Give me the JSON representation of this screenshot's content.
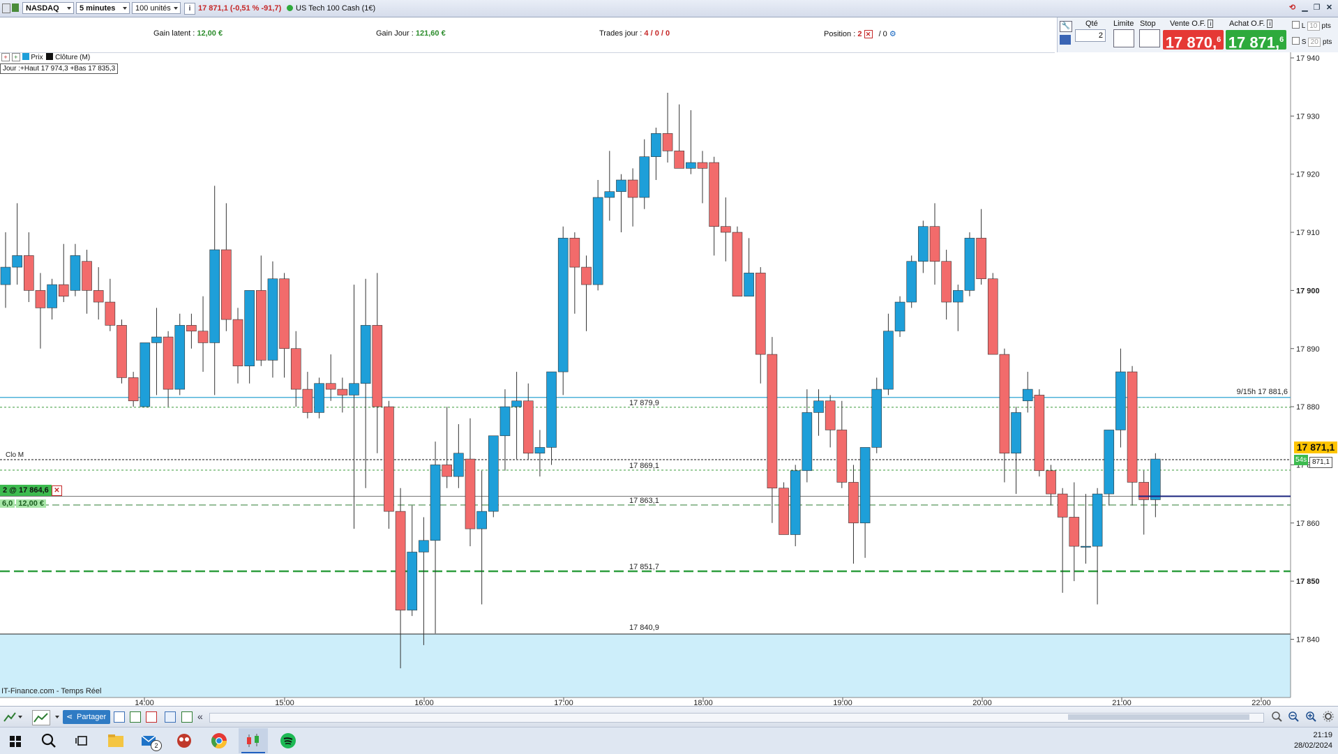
{
  "topbar": {
    "market": "NASDAQ",
    "interval": "5 minutes",
    "units": "100 unités",
    "info_icon": "i",
    "price": "17 871,1",
    "change": "(-0,51 % -91,7)",
    "instrument": "US Tech 100 Cash (1€)"
  },
  "stats": {
    "gain_latent_label": "Gain latent :",
    "gain_latent_value": "12,00 €",
    "gain_jour_label": "Gain Jour :",
    "gain_jour_value": "121,60 €",
    "trades_label": "Trades jour :",
    "trades_value": "4 / 0 / 0",
    "position_label": "Position :",
    "position_value": "2",
    "position_sep": "/ 0"
  },
  "order_panel": {
    "qty_label": "Qté",
    "qty_value": "2",
    "limit_label": "Limite",
    "stop_label": "Stop",
    "sell_label": "Vente O.F.",
    "sell_price": "17 870,",
    "sell_decimal": "6",
    "buy_label": "Achat O.F.",
    "buy_price": "17 871,",
    "buy_decimal": "6",
    "l_label": "L",
    "l_value": "10",
    "s_label": "S",
    "s_value": "20",
    "pts_label": "pts"
  },
  "chart_toolbar": {
    "price_label": "Prix",
    "close_label": "Clôture (M)",
    "day_range": "Jour :+Haut 17 974,3 +Bas 17 835,3"
  },
  "chart_labels": {
    "level_1": "17 879,9",
    "level_2": "17 869,1",
    "level_3": "17 863,1",
    "level_4": "17 851,7",
    "level_5": "17 840,9",
    "close_m": "Clo M",
    "prev_close": "9/15h 17 881,6",
    "position_tag": "2 @ 17 864,6",
    "pnl_qty": "6,0",
    "pnl_value": "12,00 €",
    "current_price": "17 871,1",
    "countdown": "54s",
    "mid_price": "871,1",
    "source": "IT-Finance.com - Temps Réel"
  },
  "chart_data": {
    "type": "candlestick",
    "x_ticks": [
      "14:00",
      "15:00",
      "16:00",
      "17:00",
      "18:00",
      "19:00",
      "20:00",
      "21:00",
      "22:00"
    ],
    "y_ticks": [
      17840,
      17850,
      17860,
      17870,
      17880,
      17890,
      17900,
      17910,
      17920,
      17930,
      17940
    ],
    "y_tick_labels": [
      "17 840",
      "17 850",
      "17 860",
      "17 870",
      "17 880",
      "17 890",
      "17 900",
      "17 910",
      "17 920",
      "17 930",
      "17 940"
    ],
    "ylim": [
      17830,
      17941
    ],
    "colors": {
      "up": "#1e9fd9",
      "down": "#f26b6b",
      "prev_close": "#4fb3d9",
      "ma_green": "#2e9e3e",
      "position": "#1a237e"
    },
    "levels": [
      17879.9,
      17869.1,
      17863.1,
      17851.7,
      17840.9,
      17881.6,
      17870.9,
      17864.6
    ],
    "candles": [
      {
        "o": 17901,
        "h": 17910,
        "l": 17897,
        "c": 17904
      },
      {
        "o": 17904,
        "h": 17915,
        "l": 17901,
        "c": 17906
      },
      {
        "o": 17906,
        "h": 17910,
        "l": 17898,
        "c": 17900
      },
      {
        "o": 17900,
        "h": 17903,
        "l": 17890,
        "c": 17897
      },
      {
        "o": 17897,
        "h": 17902,
        "l": 17895,
        "c": 17901
      },
      {
        "o": 17901,
        "h": 17908,
        "l": 17898,
        "c": 17899
      },
      {
        "o": 17900,
        "h": 17908,
        "l": 17899,
        "c": 17906
      },
      {
        "o": 17905,
        "h": 17907,
        "l": 17896,
        "c": 17900
      },
      {
        "o": 17900,
        "h": 17904,
        "l": 17895,
        "c": 17898
      },
      {
        "o": 17898,
        "h": 17902,
        "l": 17893,
        "c": 17894
      },
      {
        "o": 17894,
        "h": 17895,
        "l": 17884,
        "c": 17885
      },
      {
        "o": 17885,
        "h": 17886,
        "l": 17880,
        "c": 17881
      },
      {
        "o": 17880,
        "h": 17890,
        "l": 17880,
        "c": 17891
      },
      {
        "o": 17891,
        "h": 17897,
        "l": 17882,
        "c": 17892
      },
      {
        "o": 17892,
        "h": 17893,
        "l": 17880,
        "c": 17883
      },
      {
        "o": 17883,
        "h": 17896,
        "l": 17882,
        "c": 17894
      },
      {
        "o": 17894,
        "h": 17896,
        "l": 17890,
        "c": 17893
      },
      {
        "o": 17893,
        "h": 17899,
        "l": 17886,
        "c": 17891
      },
      {
        "o": 17891,
        "h": 17918,
        "l": 17882,
        "c": 17907
      },
      {
        "o": 17907,
        "h": 17915,
        "l": 17893,
        "c": 17895
      },
      {
        "o": 17895,
        "h": 17897,
        "l": 17884,
        "c": 17887
      },
      {
        "o": 17887,
        "h": 17899,
        "l": 17884,
        "c": 17900
      },
      {
        "o": 17900,
        "h": 17906,
        "l": 17887,
        "c": 17888
      },
      {
        "o": 17888,
        "h": 17905,
        "l": 17885,
        "c": 17902
      },
      {
        "o": 17902,
        "h": 17903,
        "l": 17885,
        "c": 17890
      },
      {
        "o": 17890,
        "h": 17893,
        "l": 17880,
        "c": 17883
      },
      {
        "o": 17883,
        "h": 17886,
        "l": 17878,
        "c": 17879
      },
      {
        "o": 17879,
        "h": 17885,
        "l": 17878,
        "c": 17884
      },
      {
        "o": 17884,
        "h": 17889,
        "l": 17881,
        "c": 17883
      },
      {
        "o": 17883,
        "h": 17885,
        "l": 17879,
        "c": 17882
      },
      {
        "o": 17882,
        "h": 17901,
        "l": 17859,
        "c": 17884
      },
      {
        "o": 17884,
        "h": 17902,
        "l": 17866,
        "c": 17894
      },
      {
        "o": 17894,
        "h": 17903,
        "l": 17872,
        "c": 17880
      },
      {
        "o": 17880,
        "h": 17881,
        "l": 17859,
        "c": 17862
      },
      {
        "o": 17862,
        "h": 17866,
        "l": 17835,
        "c": 17845
      },
      {
        "o": 17845,
        "h": 17863,
        "l": 17844,
        "c": 17855
      },
      {
        "o": 17855,
        "h": 17861,
        "l": 17839,
        "c": 17857
      },
      {
        "o": 17857,
        "h": 17874,
        "l": 17841,
        "c": 17870
      },
      {
        "o": 17870,
        "h": 17880,
        "l": 17866,
        "c": 17868
      },
      {
        "o": 17868,
        "h": 17877,
        "l": 17866,
        "c": 17872
      },
      {
        "o": 17871,
        "h": 17878,
        "l": 17856,
        "c": 17859
      },
      {
        "o": 17859,
        "h": 17869,
        "l": 17846,
        "c": 17862
      },
      {
        "o": 17862,
        "h": 17875,
        "l": 17861,
        "c": 17875
      },
      {
        "o": 17875,
        "h": 17883,
        "l": 17869,
        "c": 17880
      },
      {
        "o": 17880,
        "h": 17886,
        "l": 17871,
        "c": 17881
      },
      {
        "o": 17881,
        "h": 17884,
        "l": 17871,
        "c": 17872
      },
      {
        "o": 17872,
        "h": 17876,
        "l": 17868,
        "c": 17873
      },
      {
        "o": 17873,
        "h": 17886,
        "l": 17870,
        "c": 17886
      },
      {
        "o": 17886,
        "h": 17911,
        "l": 17882,
        "c": 17909
      },
      {
        "o": 17909,
        "h": 17910,
        "l": 17896,
        "c": 17904
      },
      {
        "o": 17904,
        "h": 17906,
        "l": 17893,
        "c": 17901
      },
      {
        "o": 17901,
        "h": 17919,
        "l": 17900,
        "c": 17916
      },
      {
        "o": 17916,
        "h": 17924,
        "l": 17912,
        "c": 17917
      },
      {
        "o": 17917,
        "h": 17920,
        "l": 17910,
        "c": 17919
      },
      {
        "o": 17919,
        "h": 17921,
        "l": 17911,
        "c": 17916
      },
      {
        "o": 17916,
        "h": 17926,
        "l": 17914,
        "c": 17923
      },
      {
        "o": 17923,
        "h": 17928,
        "l": 17919,
        "c": 17927
      },
      {
        "o": 17927,
        "h": 17934,
        "l": 17922,
        "c": 17924
      },
      {
        "o": 17924,
        "h": 17932,
        "l": 17922,
        "c": 17921
      },
      {
        "o": 17921,
        "h": 17931,
        "l": 17920,
        "c": 17922
      },
      {
        "o": 17922,
        "h": 17924,
        "l": 17915,
        "c": 17921
      },
      {
        "o": 17922,
        "h": 17923,
        "l": 17906,
        "c": 17911
      },
      {
        "o": 17911,
        "h": 17916,
        "l": 17905,
        "c": 17910
      },
      {
        "o": 17910,
        "h": 17911,
        "l": 17899,
        "c": 17899
      },
      {
        "o": 17899,
        "h": 17909,
        "l": 17899,
        "c": 17903
      },
      {
        "o": 17903,
        "h": 17904,
        "l": 17884,
        "c": 17889
      },
      {
        "o": 17889,
        "h": 17892,
        "l": 17860,
        "c": 17866
      },
      {
        "o": 17866,
        "h": 17867,
        "l": 17858,
        "c": 17858
      },
      {
        "o": 17858,
        "h": 17870,
        "l": 17856,
        "c": 17869
      },
      {
        "o": 17869,
        "h": 17883,
        "l": 17867,
        "c": 17879
      },
      {
        "o": 17879,
        "h": 17883,
        "l": 17875,
        "c": 17881
      },
      {
        "o": 17881,
        "h": 17882,
        "l": 17873,
        "c": 17876
      },
      {
        "o": 17876,
        "h": 17881,
        "l": 17866,
        "c": 17867
      },
      {
        "o": 17867,
        "h": 17870,
        "l": 17853,
        "c": 17860
      },
      {
        "o": 17860,
        "h": 17872,
        "l": 17854,
        "c": 17873
      },
      {
        "o": 17873,
        "h": 17885,
        "l": 17872,
        "c": 17883
      },
      {
        "o": 17883,
        "h": 17896,
        "l": 17882,
        "c": 17893
      },
      {
        "o": 17893,
        "h": 17899,
        "l": 17892,
        "c": 17898
      },
      {
        "o": 17898,
        "h": 17906,
        "l": 17897,
        "c": 17905
      },
      {
        "o": 17905,
        "h": 17912,
        "l": 17903,
        "c": 17911
      },
      {
        "o": 17911,
        "h": 17915,
        "l": 17901,
        "c": 17905
      },
      {
        "o": 17905,
        "h": 17907,
        "l": 17895,
        "c": 17898
      },
      {
        "o": 17898,
        "h": 17901,
        "l": 17893,
        "c": 17900
      },
      {
        "o": 17900,
        "h": 17910,
        "l": 17899,
        "c": 17909
      },
      {
        "o": 17909,
        "h": 17914,
        "l": 17901,
        "c": 17902
      },
      {
        "o": 17902,
        "h": 17903,
        "l": 17889,
        "c": 17889
      },
      {
        "o": 17889,
        "h": 17890,
        "l": 17867,
        "c": 17872
      },
      {
        "o": 17872,
        "h": 17880,
        "l": 17865,
        "c": 17879
      },
      {
        "o": 17881,
        "h": 17886,
        "l": 17879,
        "c": 17883
      },
      {
        "o": 17882,
        "h": 17883,
        "l": 17868,
        "c": 17869
      },
      {
        "o": 17869,
        "h": 17870,
        "l": 17863,
        "c": 17865
      },
      {
        "o": 17865,
        "h": 17866,
        "l": 17848,
        "c": 17861
      },
      {
        "o": 17861,
        "h": 17867,
        "l": 17850,
        "c": 17856
      },
      {
        "o": 17856,
        "h": 17865,
        "l": 17853,
        "c": 17856
      },
      {
        "o": 17856,
        "h": 17866,
        "l": 17846,
        "c": 17865
      },
      {
        "o": 17865,
        "h": 17876,
        "l": 17863,
        "c": 17876
      },
      {
        "o": 17876,
        "h": 17890,
        "l": 17873,
        "c": 17886
      },
      {
        "o": 17886,
        "h": 17887,
        "l": 17863,
        "c": 17867
      },
      {
        "o": 17867,
        "h": 17869,
        "l": 17858,
        "c": 17864
      },
      {
        "o": 17864,
        "h": 17872,
        "l": 17861,
        "c": 17871
      }
    ]
  },
  "bottombar": {
    "share_label": "Partager",
    "chevrons": "«"
  },
  "taskbar": {
    "mail_badge": "2",
    "time": "21:19",
    "date": "28/02/2024"
  }
}
